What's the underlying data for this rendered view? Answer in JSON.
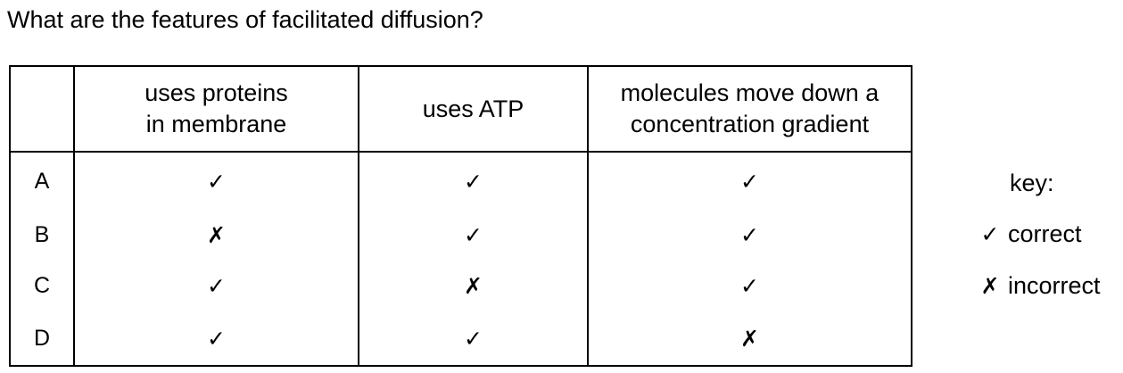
{
  "question": "What are the features of facilitated diffusion?",
  "table": {
    "headers": [
      "",
      [
        "uses proteins",
        "in membrane"
      ],
      [
        "uses ATP"
      ],
      [
        "molecules move down a",
        "concentration gradient"
      ]
    ],
    "rows": [
      {
        "label": "A",
        "cells": [
          "✓",
          "✓",
          "✓"
        ]
      },
      {
        "label": "B",
        "cells": [
          "✗",
          "✓",
          "✓"
        ]
      },
      {
        "label": "C",
        "cells": [
          "✓",
          "✗",
          "✓"
        ]
      },
      {
        "label": "D",
        "cells": [
          "✓",
          "✓",
          "✗"
        ]
      }
    ]
  },
  "key": {
    "title": "key:",
    "items": [
      {
        "symbol": "✓",
        "label": "correct"
      },
      {
        "symbol": "✗",
        "label": "incorrect"
      }
    ]
  }
}
